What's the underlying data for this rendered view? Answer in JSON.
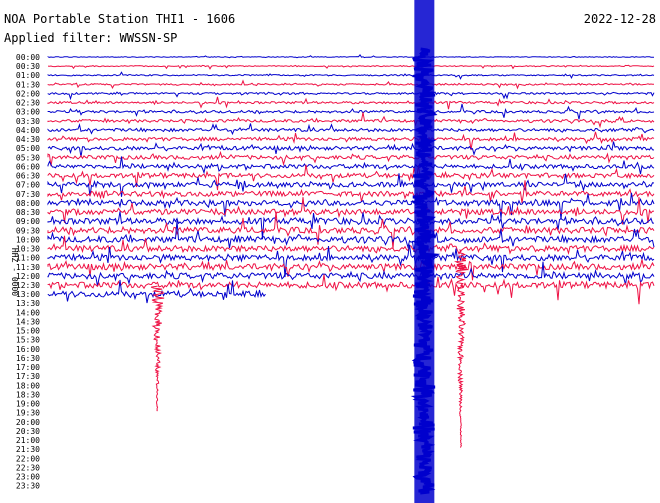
{
  "chart_data": {
    "type": "line",
    "title": "NOA Portable Station THI1 - 1606",
    "date": "2022-12-28",
    "subtitle": "Applied filter: WWSSN-SP",
    "channel_label": "HHZ - 0000",
    "y_tick_labels": [
      "00:00",
      "00:30",
      "01:00",
      "01:30",
      "02:00",
      "02:30",
      "03:00",
      "03:30",
      "04:00",
      "04:30",
      "05:00",
      "05:30",
      "06:00",
      "06:30",
      "07:00",
      "07:30",
      "08:00",
      "08:30",
      "09:00",
      "09:30",
      "10:00",
      "10:30",
      "11:00",
      "11:30",
      "12:00",
      "12:30",
      "13:00",
      "13:30",
      "14:00",
      "14:30",
      "15:00",
      "15:30",
      "16:00",
      "16:30",
      "17:00",
      "17:30",
      "18:00",
      "18:30",
      "19:00",
      "19:30",
      "20:00",
      "20:30",
      "21:00",
      "21:30",
      "22:00",
      "22:30",
      "23:00",
      "23:30"
    ],
    "trace_colors": [
      "#0000cc",
      "#ee1144"
    ],
    "recorded_rows": 27,
    "partial_last_row_fraction": 0.36,
    "grid": false,
    "events": [
      {
        "minute_in_row": 0.18,
        "start_row": 26,
        "span_rows": 12,
        "color_row": 25
      },
      {
        "minute_in_row": 0.62,
        "start_row": 0,
        "span_rows": 47,
        "color_row": 0
      },
      {
        "minute_in_row": 0.68,
        "start_row": 22,
        "span_rows": 20,
        "color_row": 23
      }
    ]
  }
}
